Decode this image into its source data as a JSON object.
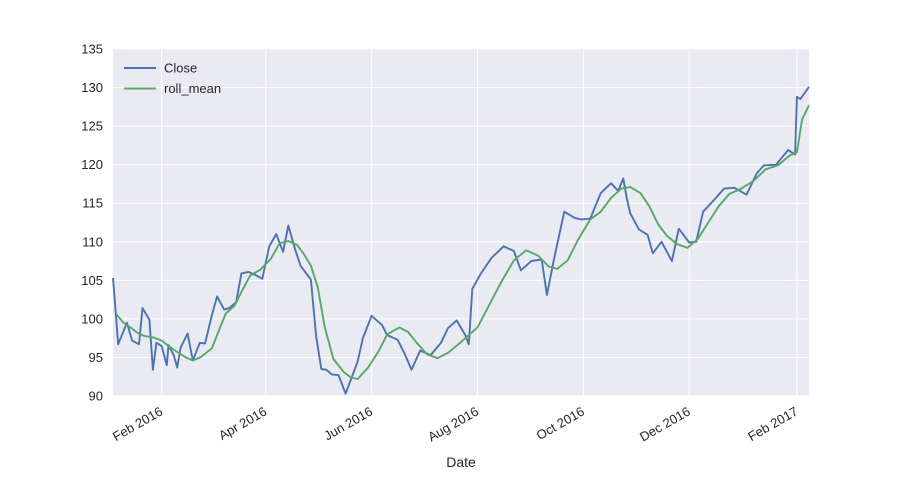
{
  "chart_data": {
    "type": "line",
    "title": "",
    "xlabel": "Date",
    "ylabel": "",
    "x_range": [
      "2016-01-04",
      "2017-02-08"
    ],
    "ylim": [
      90,
      135
    ],
    "y_ticks": [
      90,
      95,
      100,
      105,
      110,
      115,
      120,
      125,
      130,
      135
    ],
    "x_ticks": [
      {
        "date": "2016-02-01",
        "label": "Feb 2016"
      },
      {
        "date": "2016-04-01",
        "label": "Apr 2016"
      },
      {
        "date": "2016-06-01",
        "label": "Jun 2016"
      },
      {
        "date": "2016-08-01",
        "label": "Aug 2016"
      },
      {
        "date": "2016-10-01",
        "label": "Oct 2016"
      },
      {
        "date": "2016-12-01",
        "label": "Dec 2016"
      },
      {
        "date": "2017-02-01",
        "label": "Feb 2017"
      }
    ],
    "grid": true,
    "legend": "top-left",
    "background": "#eaeaf2",
    "series": [
      {
        "name": "Close",
        "color": "#4c72b0",
        "x": [
          "2016-01-04",
          "2016-01-07",
          "2016-01-12",
          "2016-01-15",
          "2016-01-19",
          "2016-01-21",
          "2016-01-25",
          "2016-01-27",
          "2016-01-29",
          "2016-02-01",
          "2016-02-04",
          "2016-02-05",
          "2016-02-08",
          "2016-02-10",
          "2016-02-12",
          "2016-02-16",
          "2016-02-19",
          "2016-02-23",
          "2016-02-26",
          "2016-03-01",
          "2016-03-04",
          "2016-03-08",
          "2016-03-11",
          "2016-03-15",
          "2016-03-18",
          "2016-03-22",
          "2016-03-26",
          "2016-03-30",
          "2016-04-03",
          "2016-04-07",
          "2016-04-11",
          "2016-04-14",
          "2016-04-18",
          "2016-04-21",
          "2016-04-25",
          "2016-04-27",
          "2016-04-30",
          "2016-05-03",
          "2016-05-06",
          "2016-05-09",
          "2016-05-13",
          "2016-05-17",
          "2016-05-20",
          "2016-05-24",
          "2016-05-27",
          "2016-06-01",
          "2016-06-07",
          "2016-06-10",
          "2016-06-16",
          "2016-06-20",
          "2016-06-24",
          "2016-06-29",
          "2016-07-05",
          "2016-07-11",
          "2016-07-15",
          "2016-07-20",
          "2016-07-25",
          "2016-07-27",
          "2016-07-29",
          "2016-08-03",
          "2016-08-09",
          "2016-08-16",
          "2016-08-22",
          "2016-08-26",
          "2016-09-01",
          "2016-09-07",
          "2016-09-10",
          "2016-09-14",
          "2016-09-20",
          "2016-09-26",
          "2016-09-30",
          "2016-10-05",
          "2016-10-11",
          "2016-10-17",
          "2016-10-21",
          "2016-10-24",
          "2016-10-26",
          "2016-10-28",
          "2016-11-02",
          "2016-11-07",
          "2016-11-10",
          "2016-11-15",
          "2016-11-21",
          "2016-11-25",
          "2016-12-01",
          "2016-12-05",
          "2016-12-09",
          "2016-12-16",
          "2016-12-21",
          "2016-12-27",
          "2017-01-03",
          "2017-01-09",
          "2017-01-13",
          "2017-01-20",
          "2017-01-27",
          "2017-01-31",
          "2017-02-01",
          "2017-02-03",
          "2017-02-08"
        ],
        "y": [
          105.3,
          96.7,
          99.5,
          97.2,
          96.7,
          101.4,
          99.9,
          93.4,
          96.9,
          96.5,
          94.0,
          96.6,
          95.3,
          93.7,
          96.3,
          98.1,
          94.6,
          96.9,
          96.8,
          100.5,
          102.9,
          101.2,
          101.4,
          102.2,
          105.9,
          106.1,
          105.7,
          105.2,
          109.4,
          111.0,
          108.7,
          112.1,
          109.0,
          106.9,
          105.7,
          105.1,
          97.8,
          93.5,
          93.4,
          92.8,
          92.7,
          90.3,
          92.1,
          94.5,
          97.5,
          100.4,
          99.2,
          97.9,
          97.3,
          95.5,
          93.4,
          95.9,
          95.3,
          96.9,
          98.8,
          99.8,
          97.9,
          96.7,
          103.9,
          105.9,
          107.9,
          109.4,
          108.8,
          106.3,
          107.5,
          107.7,
          103.1,
          107.7,
          113.9,
          113.1,
          112.9,
          113.0,
          116.3,
          117.6,
          116.6,
          118.2,
          115.6,
          113.7,
          111.6,
          110.9,
          108.5,
          110.0,
          107.5,
          111.7,
          109.9,
          110.0,
          113.9,
          115.6,
          116.9,
          117.0,
          116.1,
          118.9,
          119.9,
          120.0,
          121.9,
          121.3,
          128.8,
          128.5,
          130.1
        ]
      },
      {
        "name": "roll_mean",
        "color": "#55a868",
        "x": [
          "2016-01-06",
          "2016-01-10",
          "2016-01-14",
          "2016-01-18",
          "2016-01-22",
          "2016-01-27",
          "2016-02-01",
          "2016-02-05",
          "2016-02-10",
          "2016-02-15",
          "2016-02-19",
          "2016-02-24",
          "2016-03-01",
          "2016-03-05",
          "2016-03-09",
          "2016-03-14",
          "2016-03-18",
          "2016-03-23",
          "2016-03-29",
          "2016-04-04",
          "2016-04-09",
          "2016-04-14",
          "2016-04-19",
          "2016-04-23",
          "2016-04-27",
          "2016-05-01",
          "2016-05-05",
          "2016-05-10",
          "2016-05-16",
          "2016-05-20",
          "2016-05-24",
          "2016-05-30",
          "2016-06-05",
          "2016-06-10",
          "2016-06-17",
          "2016-06-22",
          "2016-06-27",
          "2016-07-03",
          "2016-07-09",
          "2016-07-15",
          "2016-07-21",
          "2016-07-26",
          "2016-08-01",
          "2016-08-08",
          "2016-08-15",
          "2016-08-22",
          "2016-08-29",
          "2016-09-05",
          "2016-09-11",
          "2016-09-16",
          "2016-09-22",
          "2016-09-28",
          "2016-10-05",
          "2016-10-11",
          "2016-10-17",
          "2016-10-23",
          "2016-10-28",
          "2016-11-03",
          "2016-11-08",
          "2016-11-13",
          "2016-11-18",
          "2016-11-24",
          "2016-11-30",
          "2016-12-06",
          "2016-12-12",
          "2016-12-18",
          "2016-12-24",
          "2016-12-31",
          "2017-01-07",
          "2017-01-14",
          "2017-01-21",
          "2017-01-28",
          "2017-02-01",
          "2017-02-04",
          "2017-02-08"
        ],
        "y": [
          100.6,
          99.5,
          98.9,
          98.2,
          97.8,
          97.6,
          97.2,
          96.5,
          95.7,
          95.0,
          94.6,
          95.1,
          96.2,
          98.5,
          100.7,
          101.7,
          103.5,
          105.6,
          106.4,
          107.8,
          109.8,
          110.1,
          109.6,
          108.4,
          106.9,
          104.1,
          98.9,
          94.8,
          93.1,
          92.4,
          92.2,
          93.7,
          95.8,
          98.0,
          98.9,
          98.3,
          96.9,
          95.4,
          94.9,
          95.6,
          96.7,
          97.7,
          98.9,
          101.9,
          104.9,
          107.6,
          108.9,
          108.2,
          106.8,
          106.5,
          107.6,
          110.3,
          112.9,
          113.9,
          115.7,
          116.9,
          117.1,
          116.3,
          114.6,
          112.3,
          110.8,
          109.7,
          109.2,
          110.4,
          112.5,
          114.6,
          116.2,
          116.9,
          117.9,
          119.4,
          119.9,
          121.2,
          121.6,
          125.9,
          127.7
        ]
      }
    ]
  }
}
